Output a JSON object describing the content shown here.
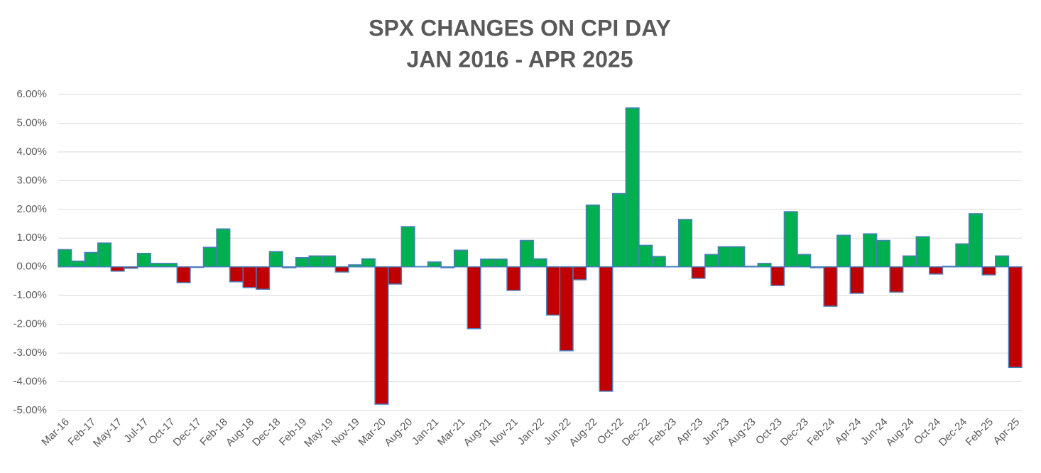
{
  "chart_data": {
    "type": "bar",
    "title": "SPX CHANGES ON CPI DAY",
    "subtitle": "JAN 2016 - APR 2025",
    "categories": [
      "Mar-16",
      null,
      "Feb-17",
      null,
      "May-17",
      null,
      "Jul-17",
      null,
      "Oct-17",
      null,
      "Dec-17",
      null,
      "Feb-18",
      null,
      "Aug-18",
      null,
      "Dec-18",
      null,
      "Feb-19",
      null,
      "May-19",
      null,
      "Nov-19",
      null,
      "Mar-20",
      null,
      "Aug-20",
      null,
      "Jan-21",
      null,
      "Mar-21",
      null,
      "Aug-21",
      null,
      "Nov-21",
      null,
      "Jan-22",
      null,
      "Jun-22",
      null,
      "Aug-22",
      null,
      "Oct-22",
      null,
      "Dec-22",
      null,
      "Feb-23",
      null,
      "Apr-23",
      null,
      "Jun-23",
      null,
      "Aug-23",
      null,
      "Oct-23",
      null,
      "Dec-23",
      null,
      "Feb-24",
      null,
      "Apr-24",
      null,
      "Jun-24",
      null,
      "Aug-24",
      null,
      "Oct-24",
      null,
      "Dec-24",
      null,
      "Feb-25",
      null,
      "Apr-25"
    ],
    "values": [
      0.6,
      0.2,
      0.5,
      0.83,
      -0.15,
      -0.05,
      0.47,
      0.12,
      0.12,
      -0.55,
      -0.02,
      0.68,
      1.32,
      -0.52,
      -0.72,
      -0.78,
      0.53,
      -0.03,
      0.32,
      0.38,
      0.38,
      -0.18,
      0.07,
      0.28,
      -4.78,
      -0.6,
      1.4,
      0.01,
      0.17,
      -0.03,
      0.58,
      -2.15,
      0.27,
      0.27,
      -0.82,
      0.92,
      0.28,
      -1.68,
      -2.92,
      -0.45,
      2.15,
      -4.33,
      2.55,
      5.53,
      0.75,
      0.36,
      0.01,
      1.65,
      -0.4,
      0.43,
      0.7,
      0.7,
      0.02,
      0.12,
      -0.65,
      1.92,
      0.43,
      -0.03,
      -1.37,
      1.1,
      -0.92,
      1.15,
      0.92,
      -0.88,
      0.38,
      1.05,
      -0.25,
      0.02,
      0.8,
      1.85,
      -0.28,
      0.38,
      -3.5
    ],
    "positive_color": "#00b050",
    "negative_color": "#c00000",
    "edge_color": "#4a7ebb",
    "ylim": [
      -5,
      6
    ],
    "yticks": [
      {
        "value": -5,
        "label": "-5.00%"
      },
      {
        "value": -4,
        "label": "-4.00%"
      },
      {
        "value": -3,
        "label": "-3.00%"
      },
      {
        "value": -2,
        "label": "-2.00%"
      },
      {
        "value": -1,
        "label": "-1.00%"
      },
      {
        "value": 0,
        "label": "0.00%"
      },
      {
        "value": 1,
        "label": "1.00%"
      },
      {
        "value": 2,
        "label": "2.00%"
      },
      {
        "value": 3,
        "label": "3.00%"
      },
      {
        "value": 4,
        "label": "4.00%"
      },
      {
        "value": 5,
        "label": "5.00%"
      },
      {
        "value": 6,
        "label": "6.00%"
      }
    ],
    "grid": true
  }
}
